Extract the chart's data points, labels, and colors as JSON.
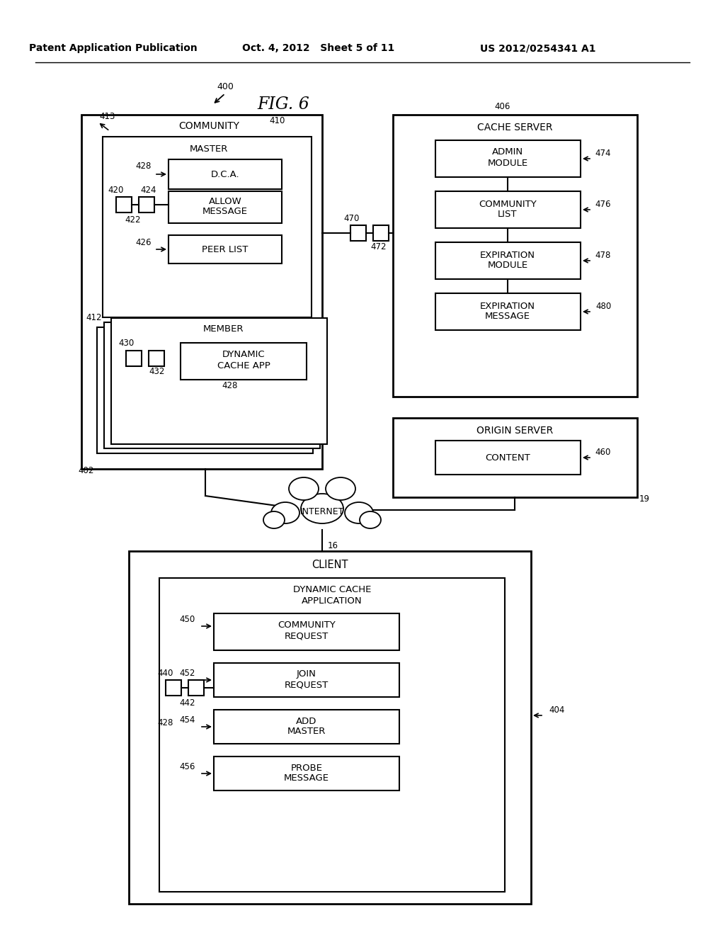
{
  "bg_color": "#ffffff",
  "header_left": "Patent Application Publication",
  "header_center": "Oct. 4, 2012   Sheet 5 of 11",
  "header_right": "US 2012/0254341 A1"
}
